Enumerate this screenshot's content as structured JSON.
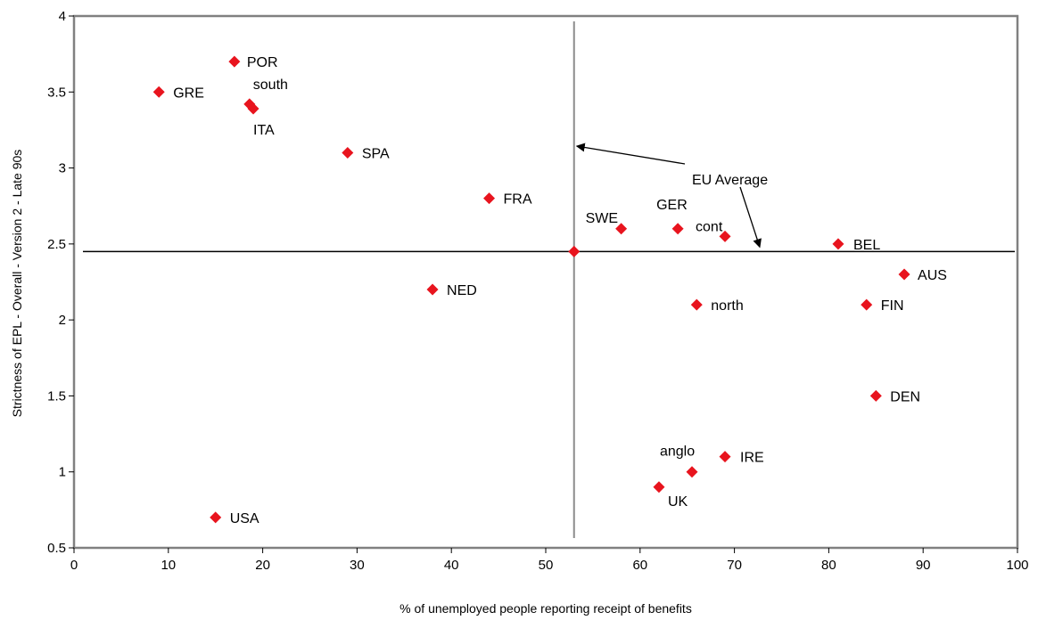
{
  "chart_data": {
    "type": "scatter",
    "title": "",
    "xlabel": "% of unemployed people reporting receipt of benefits",
    "ylabel": "Strictness of EPL - Overall - Version 2 - Late 90s",
    "xlim": [
      0,
      100
    ],
    "ylim": [
      0.5,
      4
    ],
    "xticks": [
      "0",
      "10",
      "20",
      "30",
      "40",
      "50",
      "60",
      "70",
      "80",
      "90",
      "100"
    ],
    "yticks": [
      "0.5",
      "1",
      "1.5",
      "2",
      "2.5",
      "3",
      "3.5",
      "4"
    ],
    "grid": false,
    "marker_color": "#e8141e",
    "points": [
      {
        "label": "GRE",
        "x": 9,
        "y": 3.5
      },
      {
        "label": "POR",
        "x": 17,
        "y": 3.7
      },
      {
        "label": "south",
        "x": 18.6,
        "y": 3.42
      },
      {
        "label": "ITA",
        "x": 19,
        "y": 3.39
      },
      {
        "label": "SPA",
        "x": 29,
        "y": 3.1
      },
      {
        "label": "FRA",
        "x": 44,
        "y": 2.8
      },
      {
        "label": "NED",
        "x": 38,
        "y": 2.2
      },
      {
        "label": "SWE",
        "x": 58,
        "y": 2.6
      },
      {
        "label": "GER",
        "x": 64,
        "y": 2.6
      },
      {
        "label": "cont",
        "x": 69,
        "y": 2.55
      },
      {
        "label": "BEL",
        "x": 81,
        "y": 2.5
      },
      {
        "label": "AUS",
        "x": 88,
        "y": 2.3
      },
      {
        "label": "north",
        "x": 66,
        "y": 2.1
      },
      {
        "label": "FIN",
        "x": 84,
        "y": 2.1
      },
      {
        "label": "DEN",
        "x": 85,
        "y": 1.5
      },
      {
        "label": "IRE",
        "x": 69,
        "y": 1.1
      },
      {
        "label": "anglo",
        "x": 65.5,
        "y": 1.0
      },
      {
        "label": "UK",
        "x": 62,
        "y": 0.9
      },
      {
        "label": "USA",
        "x": 15,
        "y": 0.7
      },
      {
        "label": "",
        "x": 53,
        "y": 2.45
      }
    ],
    "reference_lines": {
      "x_average": 53,
      "y_average": 2.45
    },
    "annotation": "EU Average"
  }
}
